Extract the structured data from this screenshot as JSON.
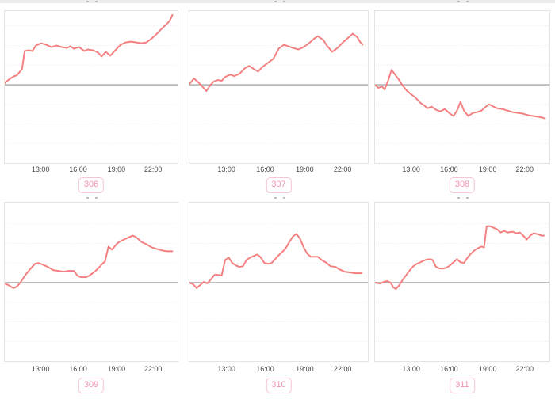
{
  "page": {
    "top_strip_color": "#ececec",
    "note": "grid of six intraday line charts; chart titles cut off at crop edges"
  },
  "colors": {
    "line": "#f38080",
    "zero_line": "#a8a8a8",
    "grid_line": "#e9e9e9",
    "panel_border": "#e4e4e4",
    "tick_text": "#484848",
    "badge_text": "#ef92b0",
    "badge_border": "#f7c5d7",
    "badge_bg": "#ffffff"
  },
  "x_ticks": {
    "labels": [
      "13:00",
      "16:00",
      "19:00",
      "22:00"
    ],
    "fracs": [
      0.21,
      0.425,
      0.645,
      0.855
    ]
  },
  "chart_data": [
    {
      "id": "306",
      "type": "line",
      "badge_label": "306",
      "x_tick_labels": [
        "13:00",
        "16:00",
        "19:00",
        "22:00"
      ],
      "y_axis": "unlabeled; values are px offsets above (+) / below (-) the gray baseline",
      "points": [
        [
          0,
          2
        ],
        [
          0.02,
          6
        ],
        [
          0.04,
          9
        ],
        [
          0.055,
          11
        ],
        [
          0.07,
          12
        ],
        [
          0.085,
          16
        ],
        [
          0.1,
          20
        ],
        [
          0.115,
          43
        ],
        [
          0.14,
          44
        ],
        [
          0.16,
          43
        ],
        [
          0.18,
          50
        ],
        [
          0.21,
          53
        ],
        [
          0.24,
          51
        ],
        [
          0.27,
          48
        ],
        [
          0.3,
          50
        ],
        [
          0.33,
          48
        ],
        [
          0.36,
          47
        ],
        [
          0.38,
          49
        ],
        [
          0.4,
          46
        ],
        [
          0.43,
          48
        ],
        [
          0.46,
          43
        ],
        [
          0.48,
          45
        ],
        [
          0.51,
          44
        ],
        [
          0.54,
          41
        ],
        [
          0.56,
          36
        ],
        [
          0.585,
          42
        ],
        [
          0.61,
          37
        ],
        [
          0.64,
          44
        ],
        [
          0.67,
          51
        ],
        [
          0.7,
          54
        ],
        [
          0.73,
          55
        ],
        [
          0.76,
          54
        ],
        [
          0.79,
          53
        ],
        [
          0.82,
          54
        ],
        [
          0.85,
          59
        ],
        [
          0.88,
          65
        ],
        [
          0.91,
          72
        ],
        [
          0.94,
          78
        ],
        [
          0.955,
          82
        ],
        [
          0.97,
          89
        ]
      ]
    },
    {
      "id": "307",
      "type": "line",
      "badge_label": "307",
      "x_tick_labels": [
        "13:00",
        "16:00",
        "19:00",
        "22:00"
      ],
      "y_axis": "unlabeled; values are px offsets above (+) / below (-) the gray baseline",
      "points": [
        [
          0,
          1
        ],
        [
          0.025,
          8
        ],
        [
          0.05,
          3
        ],
        [
          0.075,
          -3
        ],
        [
          0.095,
          -8
        ],
        [
          0.115,
          -1
        ],
        [
          0.135,
          4
        ],
        [
          0.16,
          6
        ],
        [
          0.18,
          5
        ],
        [
          0.2,
          10
        ],
        [
          0.23,
          13
        ],
        [
          0.25,
          11
        ],
        [
          0.28,
          14
        ],
        [
          0.31,
          21
        ],
        [
          0.335,
          24
        ],
        [
          0.36,
          20
        ],
        [
          0.385,
          17
        ],
        [
          0.41,
          23
        ],
        [
          0.44,
          28
        ],
        [
          0.47,
          33
        ],
        [
          0.5,
          46
        ],
        [
          0.53,
          51
        ],
        [
          0.555,
          49
        ],
        [
          0.58,
          47
        ],
        [
          0.61,
          45
        ],
        [
          0.64,
          48
        ],
        [
          0.67,
          53
        ],
        [
          0.7,
          59
        ],
        [
          0.72,
          62
        ],
        [
          0.75,
          57
        ],
        [
          0.77,
          50
        ],
        [
          0.8,
          42
        ],
        [
          0.83,
          47
        ],
        [
          0.86,
          54
        ],
        [
          0.89,
          60
        ],
        [
          0.915,
          65
        ],
        [
          0.94,
          61
        ],
        [
          0.955,
          55
        ],
        [
          0.97,
          51
        ]
      ]
    },
    {
      "id": "308",
      "type": "line",
      "badge_label": "308",
      "x_tick_labels": [
        "13:00",
        "16:00",
        "19:00",
        "22:00"
      ],
      "y_axis": "unlabeled; values are px offsets above (+) / below (-) the gray baseline",
      "points": [
        [
          0,
          0
        ],
        [
          0.02,
          -4
        ],
        [
          0.04,
          -2
        ],
        [
          0.055,
          -6
        ],
        [
          0.075,
          5
        ],
        [
          0.095,
          19
        ],
        [
          0.115,
          13
        ],
        [
          0.135,
          7
        ],
        [
          0.155,
          0
        ],
        [
          0.18,
          -7
        ],
        [
          0.2,
          -11
        ],
        [
          0.23,
          -16
        ],
        [
          0.26,
          -23
        ],
        [
          0.28,
          -26
        ],
        [
          0.3,
          -30
        ],
        [
          0.325,
          -28
        ],
        [
          0.35,
          -32
        ],
        [
          0.375,
          -34
        ],
        [
          0.4,
          -31
        ],
        [
          0.425,
          -36
        ],
        [
          0.45,
          -40
        ],
        [
          0.47,
          -33
        ],
        [
          0.49,
          -22
        ],
        [
          0.51,
          -33
        ],
        [
          0.535,
          -40
        ],
        [
          0.56,
          -36
        ],
        [
          0.585,
          -35
        ],
        [
          0.61,
          -33
        ],
        [
          0.635,
          -28
        ],
        [
          0.655,
          -25
        ],
        [
          0.68,
          -28
        ],
        [
          0.7,
          -30
        ],
        [
          0.73,
          -31
        ],
        [
          0.76,
          -33
        ],
        [
          0.79,
          -35
        ],
        [
          0.82,
          -36
        ],
        [
          0.85,
          -37
        ],
        [
          0.88,
          -39
        ],
        [
          0.91,
          -40
        ],
        [
          0.94,
          -41
        ],
        [
          0.96,
          -42
        ],
        [
          0.975,
          -43
        ]
      ]
    },
    {
      "id": "309",
      "type": "line",
      "badge_label": "309",
      "x_tick_labels": [
        "13:00",
        "16:00",
        "19:00",
        "22:00"
      ],
      "y_axis": "unlabeled; values are px offsets above (+) / below (-) the gray baseline",
      "points": [
        [
          0,
          -1
        ],
        [
          0.02,
          -3
        ],
        [
          0.05,
          -7
        ],
        [
          0.07,
          -5
        ],
        [
          0.09,
          0
        ],
        [
          0.12,
          10
        ],
        [
          0.15,
          18
        ],
        [
          0.175,
          24
        ],
        [
          0.195,
          25
        ],
        [
          0.22,
          23
        ],
        [
          0.25,
          20
        ],
        [
          0.28,
          16
        ],
        [
          0.31,
          15
        ],
        [
          0.34,
          14
        ],
        [
          0.37,
          15
        ],
        [
          0.4,
          15
        ],
        [
          0.42,
          9
        ],
        [
          0.44,
          7
        ],
        [
          0.47,
          7
        ],
        [
          0.49,
          9
        ],
        [
          0.52,
          14
        ],
        [
          0.54,
          18
        ],
        [
          0.56,
          23
        ],
        [
          0.58,
          27
        ],
        [
          0.6,
          46
        ],
        [
          0.62,
          42
        ],
        [
          0.65,
          50
        ],
        [
          0.67,
          53
        ],
        [
          0.7,
          56
        ],
        [
          0.72,
          58
        ],
        [
          0.74,
          60
        ],
        [
          0.76,
          58
        ],
        [
          0.79,
          52
        ],
        [
          0.82,
          49
        ],
        [
          0.85,
          45
        ],
        [
          0.88,
          43
        ],
        [
          0.91,
          41
        ],
        [
          0.94,
          40
        ],
        [
          0.97,
          40
        ]
      ]
    },
    {
      "id": "310",
      "type": "line",
      "badge_label": "310",
      "x_tick_labels": [
        "13:00",
        "16:00",
        "19:00",
        "22:00"
      ],
      "y_axis": "unlabeled; values are px offsets above (+) / below (-) the gray baseline",
      "points": [
        [
          0,
          0
        ],
        [
          0.02,
          -2
        ],
        [
          0.04,
          -7
        ],
        [
          0.06,
          -3
        ],
        [
          0.08,
          1
        ],
        [
          0.1,
          -1
        ],
        [
          0.12,
          4
        ],
        [
          0.14,
          10
        ],
        [
          0.16,
          10
        ],
        [
          0.18,
          9
        ],
        [
          0.2,
          29
        ],
        [
          0.22,
          32
        ],
        [
          0.24,
          25
        ],
        [
          0.26,
          22
        ],
        [
          0.28,
          20
        ],
        [
          0.3,
          21
        ],
        [
          0.32,
          29
        ],
        [
          0.34,
          32
        ],
        [
          0.36,
          34
        ],
        [
          0.38,
          36
        ],
        [
          0.4,
          32
        ],
        [
          0.42,
          25
        ],
        [
          0.44,
          24
        ],
        [
          0.46,
          25
        ],
        [
          0.48,
          30
        ],
        [
          0.5,
          35
        ],
        [
          0.52,
          39
        ],
        [
          0.54,
          44
        ],
        [
          0.56,
          52
        ],
        [
          0.58,
          59
        ],
        [
          0.6,
          62
        ],
        [
          0.62,
          56
        ],
        [
          0.64,
          45
        ],
        [
          0.66,
          37
        ],
        [
          0.68,
          33
        ],
        [
          0.7,
          33
        ],
        [
          0.72,
          33
        ],
        [
          0.74,
          29
        ],
        [
          0.77,
          25
        ],
        [
          0.79,
          21
        ],
        [
          0.82,
          20
        ],
        [
          0.84,
          17
        ],
        [
          0.87,
          14
        ],
        [
          0.9,
          13
        ],
        [
          0.93,
          12
        ],
        [
          0.965,
          12
        ]
      ]
    },
    {
      "id": "311",
      "type": "line",
      "badge_label": "311",
      "x_tick_labels": [
        "13:00",
        "16:00",
        "19:00",
        "22:00"
      ],
      "y_axis": "unlabeled; values are px offsets above (+) / below (-) the gray baseline",
      "points": [
        [
          0,
          0
        ],
        [
          0.03,
          -1
        ],
        [
          0.05,
          1
        ],
        [
          0.07,
          2
        ],
        [
          0.09,
          0
        ],
        [
          0.105,
          -6
        ],
        [
          0.12,
          -8
        ],
        [
          0.14,
          -3
        ],
        [
          0.16,
          4
        ],
        [
          0.18,
          10
        ],
        [
          0.2,
          16
        ],
        [
          0.22,
          21
        ],
        [
          0.24,
          24
        ],
        [
          0.27,
          27
        ],
        [
          0.29,
          29
        ],
        [
          0.31,
          30
        ],
        [
          0.33,
          29
        ],
        [
          0.35,
          20
        ],
        [
          0.37,
          18
        ],
        [
          0.39,
          18
        ],
        [
          0.41,
          19
        ],
        [
          0.43,
          22
        ],
        [
          0.45,
          26
        ],
        [
          0.47,
          30
        ],
        [
          0.49,
          26
        ],
        [
          0.51,
          25
        ],
        [
          0.53,
          32
        ],
        [
          0.55,
          37
        ],
        [
          0.57,
          41
        ],
        [
          0.59,
          44
        ],
        [
          0.61,
          46
        ],
        [
          0.625,
          45
        ],
        [
          0.64,
          72
        ],
        [
          0.66,
          72
        ],
        [
          0.68,
          70
        ],
        [
          0.7,
          68
        ],
        [
          0.72,
          64
        ],
        [
          0.74,
          66
        ],
        [
          0.76,
          64
        ],
        [
          0.79,
          65
        ],
        [
          0.81,
          63
        ],
        [
          0.83,
          64
        ],
        [
          0.85,
          60
        ],
        [
          0.87,
          55
        ],
        [
          0.89,
          60
        ],
        [
          0.91,
          63
        ],
        [
          0.93,
          62
        ],
        [
          0.955,
          60
        ],
        [
          0.97,
          60
        ]
      ]
    }
  ]
}
